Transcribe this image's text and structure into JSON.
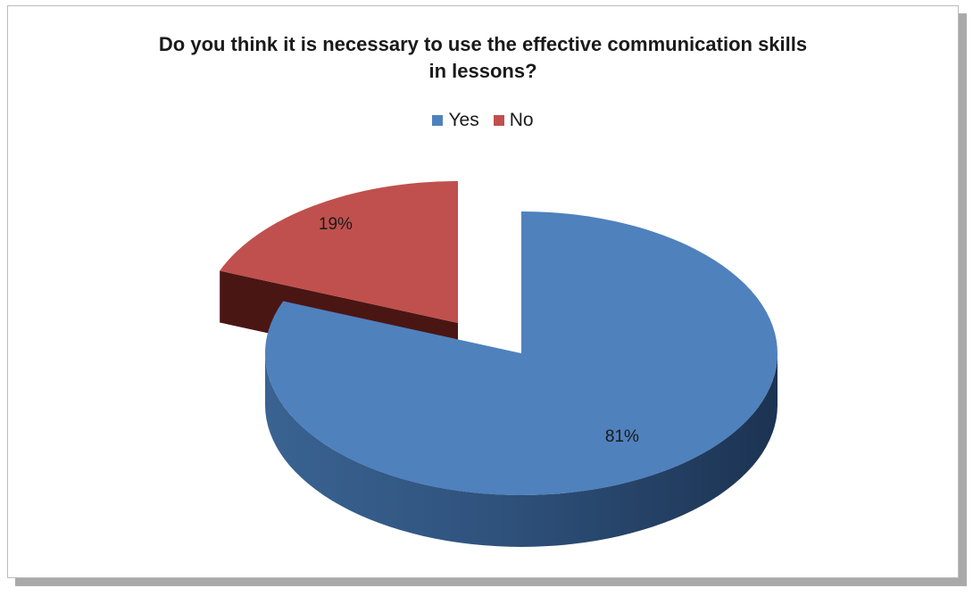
{
  "chart_data": {
    "type": "pie",
    "title_lines": [
      "Do you think it is necessary to use the effective communication skills",
      "in lessons?"
    ],
    "legend_position": "top",
    "categories": [
      "Yes",
      "No"
    ],
    "values": [
      81,
      19
    ],
    "labels": [
      "81%",
      "19%"
    ],
    "colors": [
      "#4f81bd",
      "#c0504d"
    ],
    "style": "3d-exploded"
  }
}
